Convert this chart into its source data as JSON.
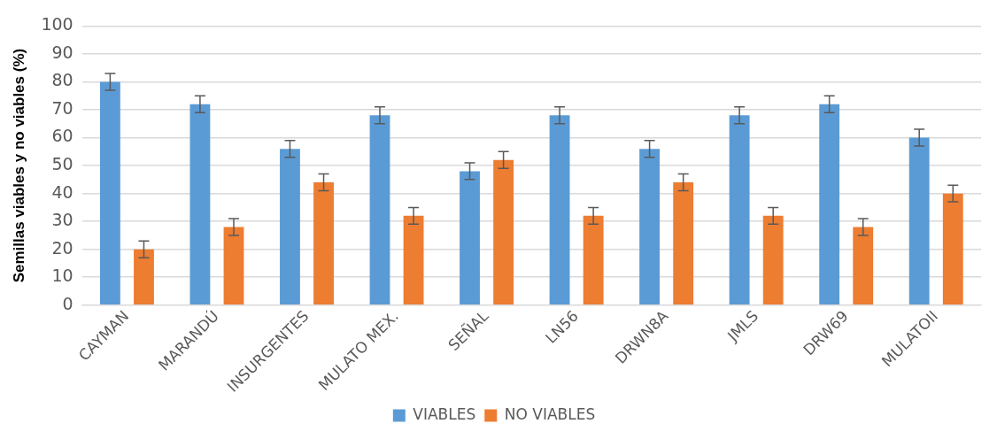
{
  "chart_data": {
    "type": "bar",
    "ylabel": "Semillas viables y no viables (%)",
    "categories": [
      "CAYMAN",
      "MARANDÚ",
      "INSURGENTES",
      "MULATO MEX.",
      "SEÑAL",
      "LN56",
      "DRWN8A",
      "JMLS",
      "DRW69",
      "MULATOII"
    ],
    "series": [
      {
        "name": "VIABLES",
        "color": "#5b9bd5",
        "values": [
          80,
          72,
          56,
          68,
          48,
          68,
          56,
          68,
          72,
          60
        ],
        "errors": [
          3,
          3,
          3,
          3,
          3,
          3,
          3,
          3,
          3,
          3
        ]
      },
      {
        "name": "NO VIABLES",
        "color": "#ed7d31",
        "values": [
          20,
          28,
          44,
          32,
          52,
          32,
          44,
          32,
          28,
          40
        ],
        "errors": [
          3,
          3,
          3,
          3,
          3,
          3,
          3,
          3,
          3,
          3
        ]
      }
    ],
    "ylim": [
      0,
      100
    ],
    "yticks": [
      0,
      10,
      20,
      30,
      40,
      50,
      60,
      70,
      80,
      90,
      100
    ],
    "grid": "y",
    "legend": "bottom"
  }
}
